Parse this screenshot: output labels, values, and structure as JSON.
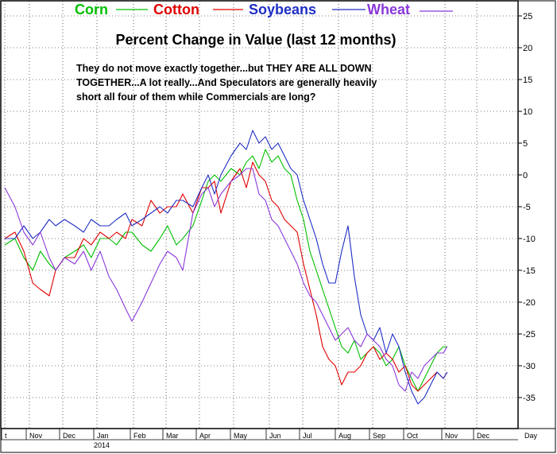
{
  "chart_data": {
    "type": "line",
    "title": "Percent Change in Value (last 12 months)",
    "annotation": [
      "They do not move exactly together...but THEY ARE ALL DOWN",
      "TOGETHER...A lot really...And Speculators are generally heavily",
      "short all four of them while Commercials are long?"
    ],
    "legend_position": "top",
    "y_axis_position": "right",
    "ylim": [
      -38,
      27
    ],
    "yticks": [
      25,
      20,
      15,
      10,
      5,
      0,
      -5,
      -10,
      -15,
      -20,
      -25,
      -30,
      -35
    ],
    "x_months": [
      "t",
      "Nov",
      "Dec",
      "Jan",
      "Feb",
      "Mar",
      "Apr",
      "May",
      "Jun",
      "Jul",
      "Aug",
      "Sep",
      "Oct",
      "Nov",
      "Dec"
    ],
    "x_year_label": "2014",
    "x_unit_label": "Day",
    "x_domain_days": [
      0,
      420
    ],
    "grid": true,
    "colors": {
      "Corn": "#00c000",
      "Cotton": "#e00000",
      "Soybeans": "#1f2fc4",
      "Wheat": "#8a38d8"
    },
    "series": [
      {
        "name": "Corn",
        "x": [
          0,
          8,
          15,
          22,
          28,
          35,
          40,
          47,
          55,
          62,
          68,
          75,
          82,
          88,
          95,
          100,
          108,
          115,
          122,
          128,
          135,
          140,
          148,
          155,
          160,
          165,
          170,
          178,
          185,
          190,
          195,
          200,
          205,
          210,
          215,
          220,
          225,
          230,
          235,
          240,
          245,
          250,
          255,
          260,
          265,
          270,
          275,
          280,
          285,
          290,
          295,
          300,
          305,
          310,
          315,
          320,
          325,
          330,
          335,
          340,
          345,
          348
        ],
        "y": [
          -11,
          -10,
          -13,
          -15,
          -12,
          -14,
          -15,
          -13,
          -12,
          -11,
          -13,
          -10,
          -10,
          -11,
          -9,
          -9,
          -11,
          -12,
          -10,
          -8,
          -11,
          -10,
          -8,
          -4,
          -1,
          0,
          -1,
          1,
          0,
          2,
          3,
          1,
          4,
          2,
          3,
          1,
          0,
          -4,
          -7,
          -12,
          -15,
          -18,
          -21,
          -24,
          -27,
          -28,
          -26,
          -29,
          -28,
          -27,
          -28,
          -30,
          -29,
          -27,
          -30,
          -32,
          -34,
          -32,
          -30,
          -28,
          -27,
          -27
        ]
      },
      {
        "name": "Cotton",
        "x": [
          0,
          8,
          15,
          22,
          28,
          35,
          40,
          47,
          55,
          62,
          68,
          75,
          82,
          88,
          95,
          100,
          108,
          115,
          122,
          128,
          135,
          140,
          148,
          155,
          160,
          165,
          170,
          178,
          185,
          190,
          195,
          200,
          205,
          210,
          215,
          220,
          225,
          230,
          235,
          240,
          245,
          250,
          255,
          260,
          265,
          270,
          275,
          280,
          285,
          290,
          295,
          300,
          305,
          310,
          315,
          320,
          325,
          330,
          335,
          340,
          345,
          348
        ],
        "y": [
          -10,
          -9,
          -12,
          -17,
          -18,
          -19,
          -15,
          -13,
          -13,
          -10,
          -11,
          -9,
          -10,
          -9,
          -10,
          -7,
          -8,
          -4,
          -6,
          -5,
          -5,
          -3,
          -6,
          -2,
          -2,
          -1,
          -6,
          -1,
          1,
          -2,
          2,
          0,
          -1,
          -4,
          -5,
          -7,
          -8,
          -9,
          -14,
          -18,
          -22,
          -27,
          -29,
          -30,
          -33,
          -31,
          -31,
          -30,
          -28,
          -27,
          -29,
          -28,
          -29,
          -31,
          -30,
          -33,
          -34,
          -33,
          -32,
          -31,
          -32,
          -31
        ]
      },
      {
        "name": "Soybeans",
        "x": [
          0,
          8,
          15,
          22,
          28,
          35,
          40,
          47,
          55,
          62,
          68,
          75,
          82,
          88,
          95,
          100,
          108,
          115,
          122,
          128,
          135,
          140,
          148,
          155,
          160,
          165,
          170,
          178,
          185,
          190,
          195,
          200,
          205,
          210,
          215,
          220,
          225,
          230,
          235,
          240,
          245,
          250,
          255,
          260,
          265,
          270,
          275,
          280,
          285,
          290,
          295,
          300,
          305,
          310,
          315,
          320,
          325,
          330,
          335,
          340,
          345,
          348
        ],
        "y": [
          -10,
          -10,
          -8,
          -10,
          -9,
          -7,
          -8,
          -7,
          -8,
          -9,
          -7,
          -8,
          -8,
          -7,
          -6,
          -8,
          -7,
          -6,
          -5,
          -6,
          -4,
          -4,
          -5,
          -2,
          0,
          -3,
          0,
          3,
          5,
          4,
          7,
          5,
          6,
          4,
          5,
          3,
          1,
          0,
          -4,
          -7,
          -10,
          -14,
          -17,
          -17,
          -12,
          -8,
          -16,
          -22,
          -25,
          -26,
          -24,
          -28,
          -25,
          -27,
          -31,
          -34,
          -36,
          -35,
          -33,
          -31,
          -32,
          -31
        ]
      },
      {
        "name": "Wheat",
        "x": [
          0,
          8,
          15,
          22,
          28,
          35,
          40,
          47,
          55,
          62,
          68,
          75,
          82,
          88,
          95,
          100,
          108,
          115,
          122,
          128,
          135,
          140,
          148,
          155,
          160,
          165,
          170,
          178,
          185,
          190,
          195,
          200,
          205,
          210,
          215,
          220,
          225,
          230,
          235,
          240,
          245,
          250,
          255,
          260,
          265,
          270,
          275,
          280,
          285,
          290,
          295,
          300,
          305,
          310,
          315,
          320,
          325,
          330,
          335,
          340,
          345,
          348
        ],
        "y": [
          -2,
          -5,
          -9,
          -11,
          -9,
          -13,
          -15,
          -13,
          -14,
          -12,
          -15,
          -12,
          -16,
          -18,
          -21,
          -23,
          -20,
          -17,
          -14,
          -12,
          -13,
          -15,
          -6,
          -3,
          -2,
          -5,
          -3,
          -1,
          0,
          1,
          1,
          -3,
          -4,
          -7,
          -8,
          -10,
          -12,
          -14,
          -17,
          -19,
          -20,
          -22,
          -24,
          -26,
          -25,
          -24,
          -26,
          -27,
          -25,
          -26,
          -27,
          -29,
          -30,
          -33,
          -34,
          -31,
          -32,
          -30,
          -29,
          -28,
          -28,
          -27
        ]
      }
    ]
  }
}
